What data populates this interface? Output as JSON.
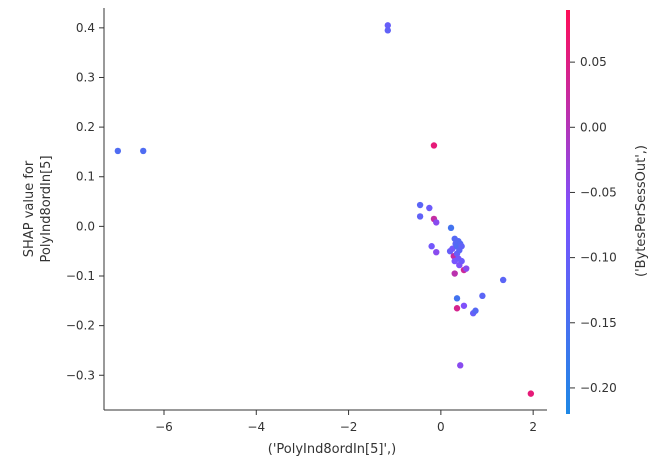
{
  "chart_data": {
    "type": "scatter",
    "xlabel": "('PolyInd8ordIn[5]',)",
    "ylabel_lines": [
      "SHAP value for",
      "PolyInd8ordIn[5]"
    ],
    "xlim": [
      -7.3,
      2.3
    ],
    "ylim": [
      -0.37,
      0.44
    ],
    "xticks": [
      -6,
      -4,
      -2,
      0,
      2
    ],
    "yticks": [
      0.4,
      0.3,
      0.2,
      0.1,
      0.0,
      -0.1,
      -0.2,
      -0.3
    ],
    "ytick_labels": [
      "0.4",
      "0.3",
      "0.2",
      "0.1",
      "0.0",
      "−0.1",
      "−0.2",
      "−0.3"
    ],
    "colorbar": {
      "label": "('BytesPerSessOut',)",
      "range": [
        -0.22,
        0.09
      ],
      "ticks": [
        0.05,
        0.0,
        -0.05,
        -0.1,
        -0.15,
        -0.2
      ],
      "tick_labels": [
        "0.05",
        "0.00",
        "−0.05",
        "−0.10",
        "−0.15",
        "−0.20"
      ],
      "color_low": "#1E88E5",
      "color_high": "#FF0D57"
    },
    "points": [
      {
        "x": -7.0,
        "y": 0.152,
        "c": -0.14
      },
      {
        "x": -6.45,
        "y": 0.152,
        "c": -0.14
      },
      {
        "x": -1.15,
        "y": 0.405,
        "c": -0.1
      },
      {
        "x": -1.15,
        "y": 0.395,
        "c": -0.11
      },
      {
        "x": -0.15,
        "y": 0.163,
        "c": 0.06
      },
      {
        "x": -0.45,
        "y": 0.043,
        "c": -0.12
      },
      {
        "x": -0.45,
        "y": 0.02,
        "c": -0.11
      },
      {
        "x": -0.25,
        "y": 0.037,
        "c": -0.09
      },
      {
        "x": -0.15,
        "y": 0.015,
        "c": 0.02
      },
      {
        "x": -0.1,
        "y": 0.008,
        "c": -0.05
      },
      {
        "x": 0.22,
        "y": -0.003,
        "c": -0.16
      },
      {
        "x": -0.2,
        "y": -0.04,
        "c": -0.08
      },
      {
        "x": -0.1,
        "y": -0.052,
        "c": -0.05
      },
      {
        "x": 0.2,
        "y": -0.05,
        "c": -0.1
      },
      {
        "x": 0.25,
        "y": -0.045,
        "c": -0.08
      },
      {
        "x": 0.28,
        "y": -0.06,
        "c": 0.02
      },
      {
        "x": 0.3,
        "y": -0.025,
        "c": -0.13
      },
      {
        "x": 0.32,
        "y": -0.035,
        "c": -0.12
      },
      {
        "x": 0.35,
        "y": -0.04,
        "c": -0.14
      },
      {
        "x": 0.38,
        "y": -0.03,
        "c": -0.13
      },
      {
        "x": 0.35,
        "y": -0.055,
        "c": -0.1
      },
      {
        "x": 0.4,
        "y": -0.048,
        "c": -0.12
      },
      {
        "x": 0.42,
        "y": -0.035,
        "c": -0.13
      },
      {
        "x": 0.45,
        "y": -0.04,
        "c": -0.11
      },
      {
        "x": 0.3,
        "y": -0.07,
        "c": -0.07
      },
      {
        "x": 0.38,
        "y": -0.065,
        "c": -0.08
      },
      {
        "x": 0.4,
        "y": -0.078,
        "c": -0.06
      },
      {
        "x": 0.45,
        "y": -0.07,
        "c": -0.09
      },
      {
        "x": 0.5,
        "y": -0.088,
        "c": 0.03
      },
      {
        "x": 0.3,
        "y": -0.095,
        "c": 0.01
      },
      {
        "x": 0.55,
        "y": -0.085,
        "c": -0.05
      },
      {
        "x": 0.35,
        "y": -0.145,
        "c": -0.16
      },
      {
        "x": 0.35,
        "y": -0.165,
        "c": 0.04
      },
      {
        "x": 0.5,
        "y": -0.16,
        "c": -0.06
      },
      {
        "x": 0.7,
        "y": -0.175,
        "c": -0.1
      },
      {
        "x": 0.75,
        "y": -0.17,
        "c": -0.13
      },
      {
        "x": 0.9,
        "y": -0.14,
        "c": -0.12
      },
      {
        "x": 1.35,
        "y": -0.108,
        "c": -0.12
      },
      {
        "x": 0.42,
        "y": -0.28,
        "c": -0.05
      },
      {
        "x": 1.95,
        "y": -0.337,
        "c": 0.06
      }
    ]
  }
}
